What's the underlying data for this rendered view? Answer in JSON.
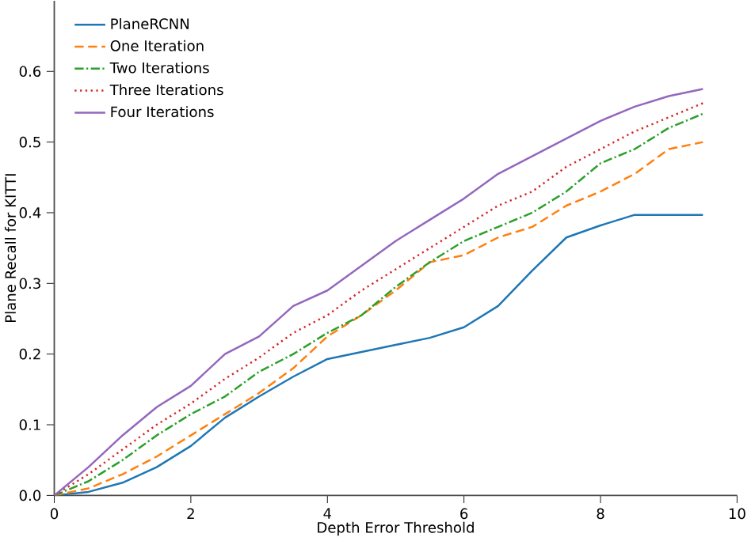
{
  "chart_data": {
    "type": "line",
    "xlabel": "Depth Error Threshold",
    "ylabel": "Plane Recall for KITTI",
    "x": [
      0,
      0.5,
      1,
      1.5,
      2,
      2.5,
      3,
      3.5,
      4,
      4.5,
      5,
      5.5,
      6,
      6.5,
      7,
      7.5,
      8,
      8.5,
      9,
      9.5
    ],
    "series": [
      {
        "name": "PlaneRCNN",
        "color": "#1f77b4",
        "line_style": "solid",
        "values": [
          0,
          0.005,
          0.018,
          0.04,
          0.07,
          0.11,
          0.14,
          0.168,
          0.193,
          0.203,
          0.213,
          0.223,
          0.238,
          0.268,
          0.318,
          0.365,
          0.382,
          0.397,
          0.397,
          0.397
        ]
      },
      {
        "name": "One Iteration",
        "color": "#ff7f0e",
        "line_style": "dashed",
        "values": [
          0,
          0.01,
          0.03,
          0.055,
          0.085,
          0.115,
          0.145,
          0.18,
          0.225,
          0.255,
          0.29,
          0.33,
          0.34,
          0.365,
          0.38,
          0.41,
          0.43,
          0.455,
          0.49,
          0.5
        ]
      },
      {
        "name": "Two Iterations",
        "color": "#2ca02c",
        "line_style": "dashdot",
        "values": [
          0,
          0.02,
          0.05,
          0.085,
          0.115,
          0.14,
          0.175,
          0.2,
          0.23,
          0.255,
          0.295,
          0.33,
          0.36,
          0.38,
          0.4,
          0.43,
          0.47,
          0.49,
          0.52,
          0.54
        ]
      },
      {
        "name": "Three Iterations",
        "color": "#d62728",
        "line_style": "dotted",
        "values": [
          0,
          0.03,
          0.065,
          0.1,
          0.13,
          0.165,
          0.195,
          0.23,
          0.255,
          0.29,
          0.32,
          0.35,
          0.38,
          0.41,
          0.43,
          0.465,
          0.49,
          0.515,
          0.535,
          0.555
        ]
      },
      {
        "name": "Four Iterations",
        "color": "#9467bd",
        "line_style": "solid",
        "values": [
          0,
          0.04,
          0.085,
          0.125,
          0.155,
          0.2,
          0.225,
          0.268,
          0.29,
          0.325,
          0.36,
          0.39,
          0.42,
          0.455,
          0.48,
          0.505,
          0.53,
          0.55,
          0.565,
          0.575
        ]
      }
    ],
    "xlim": [
      0,
      10
    ],
    "ylim": [
      0,
      0.7
    ],
    "xticks": [
      0,
      2,
      4,
      6,
      8,
      10
    ],
    "yticks": [
      {
        "value": 0,
        "label": "0.0"
      },
      0.1,
      0.2,
      0.3,
      0.4,
      0.5,
      0.6
    ],
    "legend": "top left",
    "grid": false,
    "marker": "none"
  }
}
